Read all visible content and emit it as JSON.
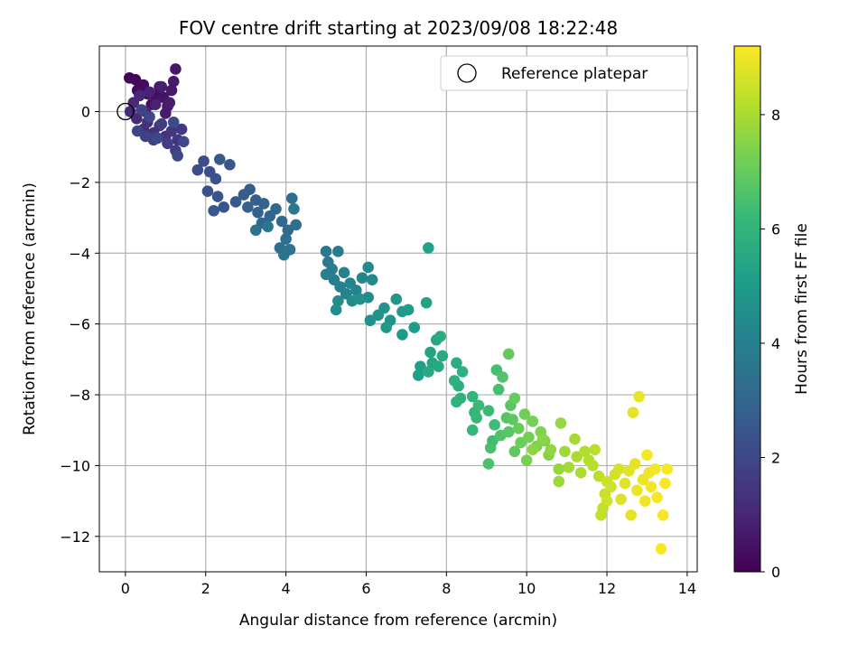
{
  "chart_data": {
    "type": "scatter",
    "title": "FOV centre drift starting at 2023/09/08 18:22:48",
    "xlabel": "Angular distance from reference (arcmin)",
    "ylabel": "Rotation from reference (arcmin)",
    "xlim": [
      -0.65,
      14.25
    ],
    "ylim": [
      -13.0,
      1.85
    ],
    "xticks": [
      0,
      2,
      4,
      6,
      8,
      10,
      12,
      14
    ],
    "yticks": [
      -12,
      -10,
      -8,
      -6,
      -4,
      -2,
      0
    ],
    "grid": true,
    "legend": {
      "placement": "top-right",
      "entries": [
        "Reference platepar"
      ]
    },
    "reference_point": {
      "name": "Reference platepar",
      "x": 0,
      "y": 0,
      "marker": "open-circle"
    },
    "colorbar": {
      "label": "Hours from first FF file",
      "range": [
        0,
        9.2
      ],
      "ticks": [
        0,
        2,
        4,
        6,
        8
      ],
      "colormap": "viridis",
      "colors": [
        "#440154",
        "#482878",
        "#3e4989",
        "#31688e",
        "#26828e",
        "#1f9e89",
        "#35b779",
        "#6ece58",
        "#b5de2b",
        "#fde725"
      ]
    },
    "series": [
      {
        "points": [
          [
            0.1,
            0.95,
            0.1
          ],
          [
            0.25,
            0.9,
            0.15
          ],
          [
            0.3,
            0.6,
            0.2
          ],
          [
            0.45,
            0.75,
            0.25
          ],
          [
            0.55,
            0.5,
            0.3
          ],
          [
            0.65,
            0.2,
            0.35
          ],
          [
            0.75,
            0.45,
            0.4
          ],
          [
            0.85,
            0.7,
            0.45
          ],
          [
            0.95,
            0.4,
            0.5
          ],
          [
            1.05,
            0.15,
            0.55
          ],
          [
            1.15,
            0.6,
            0.6
          ],
          [
            1.25,
            1.2,
            0.6
          ],
          [
            1.2,
            0.85,
            0.65
          ],
          [
            1.0,
            -0.05,
            0.7
          ],
          [
            1.1,
            0.25,
            0.75
          ],
          [
            0.9,
            0.7,
            0.8
          ],
          [
            0.75,
            0.2,
            0.85
          ],
          [
            0.6,
            0.55,
            0.9
          ],
          [
            0.5,
            0.0,
            0.95
          ],
          [
            0.35,
            0.45,
            1.0
          ],
          [
            0.2,
            0.25,
            1.05
          ],
          [
            0.12,
            0.0,
            1.1
          ],
          [
            0.28,
            -0.2,
            1.15
          ],
          [
            0.45,
            -0.5,
            1.2
          ],
          [
            0.55,
            -0.3,
            1.25
          ],
          [
            0.7,
            -0.6,
            1.3
          ],
          [
            0.85,
            -0.4,
            1.35
          ],
          [
            1.0,
            -0.7,
            1.4
          ],
          [
            1.15,
            -0.55,
            1.45
          ],
          [
            1.3,
            -0.8,
            1.5
          ],
          [
            1.4,
            -0.5,
            1.55
          ],
          [
            1.25,
            -1.1,
            1.6
          ],
          [
            1.05,
            -0.9,
            1.65
          ],
          [
            0.9,
            -0.35,
            1.7
          ],
          [
            0.7,
            -0.8,
            1.75
          ],
          [
            0.5,
            -0.7,
            1.8
          ],
          [
            0.3,
            -0.55,
            1.85
          ],
          [
            0.4,
            0.05,
            1.9
          ],
          [
            0.6,
            -0.15,
            1.95
          ],
          [
            0.8,
            -0.75,
            2.0
          ],
          [
            1.3,
            -1.25,
            2.0
          ],
          [
            1.45,
            -0.85,
            2.05
          ],
          [
            1.2,
            -0.3,
            2.1
          ],
          [
            1.8,
            -1.65,
            2.15
          ],
          [
            1.95,
            -1.4,
            2.2
          ],
          [
            2.1,
            -1.7,
            2.25
          ],
          [
            2.25,
            -1.9,
            2.3
          ],
          [
            2.05,
            -2.25,
            2.35
          ],
          [
            2.3,
            -2.4,
            2.4
          ],
          [
            2.45,
            -2.7,
            2.45
          ],
          [
            2.2,
            -2.8,
            2.5
          ],
          [
            2.6,
            -1.5,
            2.55
          ],
          [
            2.35,
            -1.35,
            2.6
          ],
          [
            2.75,
            -2.55,
            2.65
          ],
          [
            2.95,
            -2.35,
            2.7
          ],
          [
            3.1,
            -2.2,
            2.75
          ],
          [
            3.25,
            -2.5,
            2.8
          ],
          [
            3.05,
            -2.7,
            2.85
          ],
          [
            3.3,
            -2.85,
            2.9
          ],
          [
            3.45,
            -2.6,
            2.95
          ],
          [
            3.4,
            -3.15,
            3.0
          ],
          [
            3.6,
            -2.95,
            3.05
          ],
          [
            3.75,
            -2.75,
            3.1
          ],
          [
            3.9,
            -3.1,
            3.15
          ],
          [
            4.05,
            -3.35,
            3.2
          ],
          [
            4.15,
            -2.45,
            3.25
          ],
          [
            4.25,
            -3.2,
            3.3
          ],
          [
            4.0,
            -3.6,
            3.35
          ],
          [
            3.85,
            -3.85,
            3.4
          ],
          [
            4.1,
            -3.9,
            3.45
          ],
          [
            3.95,
            -4.05,
            3.5
          ],
          [
            3.25,
            -3.35,
            3.55
          ],
          [
            3.55,
            -3.25,
            3.6
          ],
          [
            4.2,
            -2.75,
            3.65
          ],
          [
            5.0,
            -3.95,
            3.7
          ],
          [
            5.05,
            -4.25,
            3.75
          ],
          [
            5.15,
            -4.45,
            3.8
          ],
          [
            5.3,
            -3.95,
            3.85
          ],
          [
            5.0,
            -4.6,
            3.9
          ],
          [
            5.2,
            -4.75,
            3.95
          ],
          [
            5.35,
            -4.95,
            4.0
          ],
          [
            5.5,
            -5.15,
            4.05
          ],
          [
            5.45,
            -4.55,
            4.1
          ],
          [
            5.6,
            -4.85,
            4.15
          ],
          [
            5.75,
            -5.05,
            4.2
          ],
          [
            5.9,
            -4.7,
            4.25
          ],
          [
            6.05,
            -4.4,
            4.3
          ],
          [
            6.15,
            -4.75,
            4.35
          ],
          [
            6.05,
            -5.25,
            4.4
          ],
          [
            5.65,
            -5.35,
            4.45
          ],
          [
            5.3,
            -5.35,
            4.5
          ],
          [
            5.25,
            -5.6,
            4.55
          ],
          [
            5.85,
            -5.3,
            4.6
          ],
          [
            6.1,
            -5.9,
            4.65
          ],
          [
            6.3,
            -5.75,
            4.7
          ],
          [
            6.45,
            -5.55,
            4.75
          ],
          [
            6.6,
            -5.9,
            4.8
          ],
          [
            6.75,
            -5.3,
            4.85
          ],
          [
            6.5,
            -6.1,
            4.9
          ],
          [
            6.9,
            -5.65,
            4.95
          ],
          [
            7.05,
            -5.6,
            5.0
          ],
          [
            6.9,
            -6.3,
            5.05
          ],
          [
            7.2,
            -6.1,
            5.1
          ],
          [
            7.35,
            -7.2,
            5.15
          ],
          [
            7.3,
            -7.45,
            5.2
          ],
          [
            7.55,
            -3.85,
            5.25
          ],
          [
            7.5,
            -5.4,
            5.3
          ],
          [
            7.6,
            -6.8,
            5.35
          ],
          [
            7.65,
            -7.1,
            5.4
          ],
          [
            7.75,
            -6.45,
            5.45
          ],
          [
            7.8,
            -7.2,
            5.5
          ],
          [
            7.55,
            -7.35,
            5.55
          ],
          [
            7.9,
            -6.9,
            5.6
          ],
          [
            7.85,
            -6.35,
            5.65
          ],
          [
            8.25,
            -7.1,
            5.7
          ],
          [
            8.3,
            -7.75,
            5.75
          ],
          [
            8.35,
            -8.1,
            5.8
          ],
          [
            8.4,
            -7.35,
            5.85
          ],
          [
            8.2,
            -7.6,
            5.9
          ],
          [
            8.25,
            -8.2,
            5.95
          ],
          [
            8.65,
            -8.05,
            6.0
          ],
          [
            8.7,
            -8.5,
            6.05
          ],
          [
            8.65,
            -9.0,
            6.1
          ],
          [
            8.75,
            -8.65,
            6.15
          ],
          [
            8.8,
            -8.3,
            6.2
          ],
          [
            9.05,
            -8.45,
            6.25
          ],
          [
            9.2,
            -8.85,
            6.3
          ],
          [
            9.15,
            -9.3,
            6.35
          ],
          [
            9.25,
            -7.3,
            6.4
          ],
          [
            9.3,
            -7.85,
            6.45
          ],
          [
            9.1,
            -9.5,
            6.5
          ],
          [
            9.05,
            -9.95,
            6.55
          ],
          [
            9.35,
            -9.15,
            6.6
          ],
          [
            9.4,
            -7.5,
            6.65
          ],
          [
            9.5,
            -8.65,
            6.7
          ],
          [
            9.55,
            -9.05,
            6.75
          ],
          [
            9.6,
            -8.3,
            6.8
          ],
          [
            9.65,
            -8.7,
            6.85
          ],
          [
            9.7,
            -9.6,
            6.9
          ],
          [
            9.55,
            -6.85,
            6.95
          ],
          [
            9.7,
            -8.1,
            7.0
          ],
          [
            9.8,
            -8.95,
            7.05
          ],
          [
            9.85,
            -9.35,
            7.1
          ],
          [
            9.95,
            -8.55,
            7.15
          ],
          [
            10.05,
            -9.2,
            7.2
          ],
          [
            10.15,
            -8.75,
            7.25
          ],
          [
            10.0,
            -9.85,
            7.3
          ],
          [
            10.25,
            -9.45,
            7.35
          ],
          [
            10.35,
            -9.05,
            7.4
          ],
          [
            10.45,
            -9.3,
            7.45
          ],
          [
            10.55,
            -9.7,
            7.5
          ],
          [
            10.4,
            -9.25,
            7.55
          ],
          [
            10.15,
            -9.55,
            7.6
          ],
          [
            10.6,
            -9.55,
            7.65
          ],
          [
            10.85,
            -8.8,
            7.7
          ],
          [
            10.8,
            -10.1,
            7.75
          ],
          [
            10.8,
            -10.45,
            7.8
          ],
          [
            10.95,
            -9.6,
            7.85
          ],
          [
            11.05,
            -10.05,
            7.9
          ],
          [
            11.2,
            -9.25,
            7.95
          ],
          [
            11.25,
            -9.75,
            8.0
          ],
          [
            11.35,
            -10.2,
            8.05
          ],
          [
            11.45,
            -9.6,
            8.1
          ],
          [
            11.55,
            -9.85,
            8.15
          ],
          [
            11.65,
            -10.0,
            8.2
          ],
          [
            11.7,
            -9.55,
            8.25
          ],
          [
            11.8,
            -10.3,
            8.3
          ],
          [
            11.9,
            -11.2,
            8.35
          ],
          [
            11.85,
            -11.4,
            8.4
          ],
          [
            11.95,
            -10.8,
            8.45
          ],
          [
            12.0,
            -10.45,
            8.5
          ],
          [
            12.1,
            -10.6,
            8.55
          ],
          [
            12.2,
            -10.25,
            8.6
          ],
          [
            12.3,
            -10.1,
            8.65
          ],
          [
            12.35,
            -10.95,
            8.7
          ],
          [
            12.45,
            -10.5,
            8.75
          ],
          [
            12.55,
            -10.15,
            8.8
          ],
          [
            12.65,
            -8.5,
            8.85
          ],
          [
            12.7,
            -9.95,
            8.85
          ],
          [
            12.8,
            -8.05,
            8.9
          ],
          [
            12.75,
            -10.7,
            8.95
          ],
          [
            12.9,
            -10.4,
            8.95
          ],
          [
            12.95,
            -11.0,
            9.0
          ],
          [
            13.05,
            -10.2,
            9.0
          ],
          [
            13.1,
            -10.6,
            9.05
          ],
          [
            13.2,
            -10.1,
            9.05
          ],
          [
            13.25,
            -10.9,
            9.1
          ],
          [
            13.4,
            -11.4,
            9.1
          ],
          [
            13.35,
            -12.35,
            9.15
          ],
          [
            13.45,
            -10.5,
            9.15
          ],
          [
            13.5,
            -10.1,
            9.15
          ],
          [
            13.0,
            -9.7,
            9.1
          ],
          [
            12.6,
            -11.4,
            8.85
          ],
          [
            12.0,
            -11.0,
            8.5
          ]
        ]
      }
    ]
  }
}
